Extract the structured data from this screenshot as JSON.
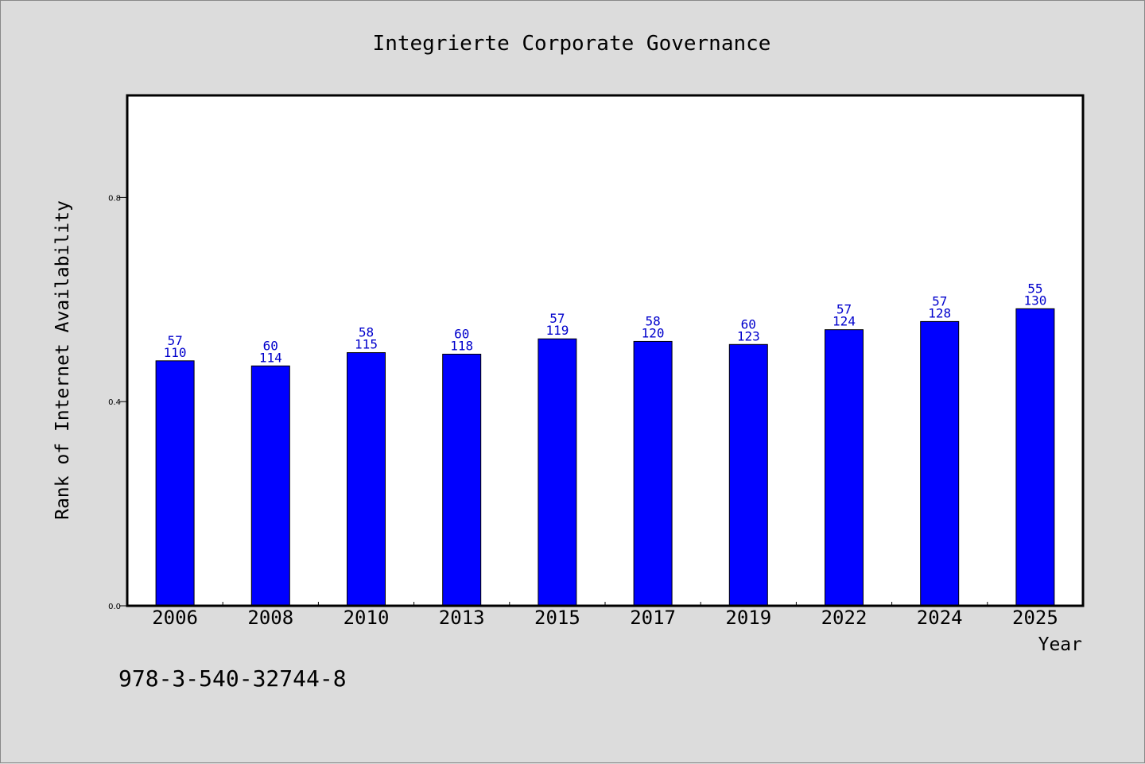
{
  "chart_data": {
    "type": "bar",
    "title": "Integrierte Corporate Governance",
    "xlabel": "Year",
    "ylabel": "Rank of Internet Availability",
    "categories": [
      "2006",
      "2008",
      "2010",
      "2013",
      "2015",
      "2017",
      "2019",
      "2022",
      "2024",
      "2025"
    ],
    "values": [
      0.48,
      0.47,
      0.496,
      0.493,
      0.523,
      0.518,
      0.512,
      0.541,
      0.557,
      0.582
    ],
    "label_top": [
      "57",
      "60",
      "58",
      "60",
      "57",
      "58",
      "60",
      "57",
      "57",
      "55"
    ],
    "label_bottom": [
      "110",
      "114",
      "115",
      "118",
      "119",
      "120",
      "123",
      "124",
      "128",
      "130"
    ],
    "ylim": [
      0.0,
      1.0
    ],
    "yticks": [
      0.0,
      0.4,
      0.8
    ],
    "ytick_labels": [
      "0.0",
      "0.4",
      "0.8"
    ],
    "bar_color": "#0000ff",
    "label_color": "#0000cc",
    "grid": false,
    "legend": "none"
  },
  "footnote": "978-3-540-32744-8"
}
